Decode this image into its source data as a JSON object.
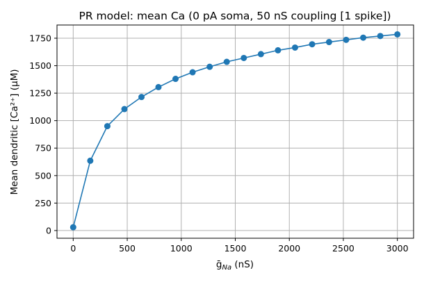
{
  "chart_data": {
    "type": "line",
    "title": "PR model: mean Ca (0 pA soma, 50 nS coupling [1 spike])",
    "xlabel_main": "ḡ",
    "xlabel_sub": "Na",
    "xlabel_unit": " (nS)",
    "ylabel": "Mean dendritic [Ca²⁺] (μM)",
    "xlim": [
      -150,
      3150
    ],
    "ylim": [
      -70,
      1870
    ],
    "grid": true,
    "x_ticks": [
      0,
      500,
      1000,
      1500,
      2000,
      2500,
      3000
    ],
    "x_tick_labels": [
      "0",
      "500",
      "1000",
      "1500",
      "2000",
      "2500",
      "3000"
    ],
    "y_ticks": [
      0,
      250,
      500,
      750,
      1000,
      1250,
      1500,
      1750
    ],
    "y_tick_labels": [
      "0",
      "250",
      "500",
      "750",
      "1000",
      "1250",
      "1500",
      "1750"
    ],
    "series": [
      {
        "color": "#1f77b4",
        "marker": "circle",
        "x": [
          0,
          158,
          316,
          474,
          632,
          789,
          947,
          1105,
          1263,
          1421,
          1579,
          1737,
          1895,
          2053,
          2211,
          2368,
          2526,
          2684,
          2842,
          3000
        ],
        "y": [
          30,
          635,
          950,
          1105,
          1215,
          1305,
          1380,
          1440,
          1490,
          1535,
          1570,
          1605,
          1640,
          1665,
          1695,
          1715,
          1735,
          1755,
          1770,
          1785
        ]
      }
    ]
  }
}
